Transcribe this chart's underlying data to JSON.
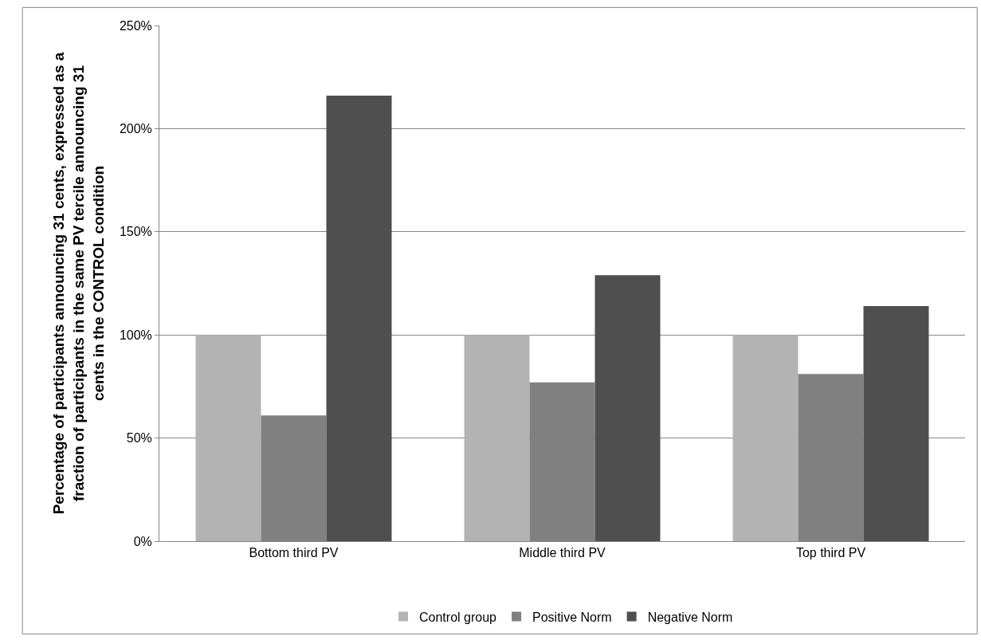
{
  "chart_data": {
    "type": "bar",
    "ylabel": "Percentage of participants announcing 31 cents, expressed as a fraction of participants in the same PV tercile announcing 31 cents in the CONTROL condition",
    "categories": [
      "Bottom third PV",
      "Middle third PV",
      "Top third PV"
    ],
    "series": [
      {
        "name": "Control group",
        "color": "#b3b3b3",
        "values": [
          100,
          100,
          100
        ]
      },
      {
        "name": "Positive Norm",
        "color": "#808080",
        "values": [
          61,
          77,
          81
        ]
      },
      {
        "name": "Negative Norm",
        "color": "#4f4f4f",
        "values": [
          216,
          129,
          114
        ]
      }
    ],
    "ylim": [
      0,
      250
    ],
    "yticks": [
      {
        "value": 0,
        "label": "0%"
      },
      {
        "value": 50,
        "label": "50%"
      },
      {
        "value": 100,
        "label": "100%"
      },
      {
        "value": 150,
        "label": "150%"
      },
      {
        "value": 200,
        "label": "200%"
      },
      {
        "value": 250,
        "label": "250%"
      }
    ],
    "grid": "y",
    "legend": "bottom"
  }
}
